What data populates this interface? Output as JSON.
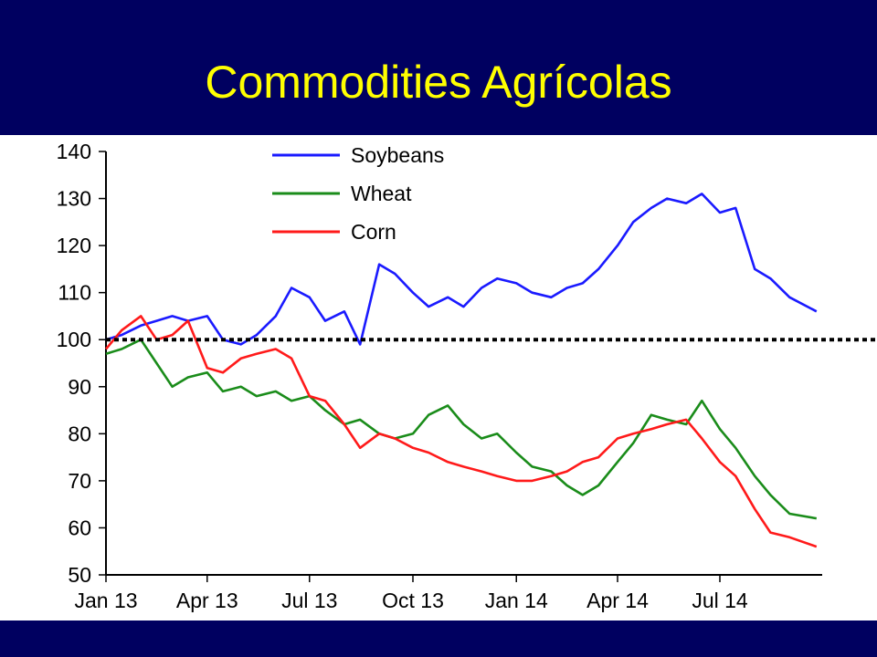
{
  "slide": {
    "title": "Commodities Agrícolas"
  },
  "chart_data": {
    "type": "line",
    "title": "",
    "xlabel": "",
    "ylabel": "",
    "ylim": [
      50,
      140
    ],
    "yticks": [
      50,
      60,
      70,
      80,
      90,
      100,
      110,
      120,
      130,
      140
    ],
    "x_ticks": [
      "Jan 13",
      "Apr 13",
      "Jul 13",
      "Oct 13",
      "Jan 14",
      "Apr 14",
      "Jul 14"
    ],
    "x_range": [
      "2013-01-01",
      "2014-09-30"
    ],
    "reference_line": {
      "y": 100,
      "style": "dotted",
      "color": "#000000"
    },
    "legend_position": "top-center",
    "grid": false,
    "series": [
      {
        "name": "Soybeans",
        "color": "#1a1aff",
        "x": [
          "2013-01-01",
          "2013-01-15",
          "2013-02-01",
          "2013-02-15",
          "2013-03-01",
          "2013-03-15",
          "2013-04-01",
          "2013-04-15",
          "2013-05-01",
          "2013-05-15",
          "2013-06-01",
          "2013-06-15",
          "2013-07-01",
          "2013-07-15",
          "2013-08-01",
          "2013-08-15",
          "2013-09-01",
          "2013-09-15",
          "2013-10-01",
          "2013-10-15",
          "2013-11-01",
          "2013-11-15",
          "2013-12-01",
          "2013-12-15",
          "2014-01-01",
          "2014-01-15",
          "2014-02-01",
          "2014-02-15",
          "2014-03-01",
          "2014-03-15",
          "2014-04-01",
          "2014-04-15",
          "2014-05-01",
          "2014-05-15",
          "2014-06-01",
          "2014-06-15",
          "2014-07-01",
          "2014-07-15",
          "2014-08-01",
          "2014-08-15",
          "2014-09-01",
          "2014-09-25"
        ],
        "values": [
          100,
          101,
          103,
          104,
          105,
          104,
          105,
          100,
          99,
          101,
          105,
          111,
          109,
          104,
          106,
          99,
          116,
          114,
          110,
          107,
          109,
          107,
          111,
          113,
          112,
          110,
          109,
          111,
          112,
          115,
          120,
          125,
          128,
          130,
          129,
          131,
          127,
          128,
          115,
          113,
          109,
          106
        ]
      },
      {
        "name": "Wheat",
        "color": "#1a8c1a",
        "x": [
          "2013-01-01",
          "2013-01-15",
          "2013-02-01",
          "2013-02-15",
          "2013-03-01",
          "2013-03-15",
          "2013-04-01",
          "2013-04-15",
          "2013-05-01",
          "2013-05-15",
          "2013-06-01",
          "2013-06-15",
          "2013-07-01",
          "2013-07-15",
          "2013-08-01",
          "2013-08-15",
          "2013-09-01",
          "2013-09-15",
          "2013-10-01",
          "2013-10-15",
          "2013-11-01",
          "2013-11-15",
          "2013-12-01",
          "2013-12-15",
          "2014-01-01",
          "2014-01-15",
          "2014-02-01",
          "2014-02-15",
          "2014-03-01",
          "2014-03-15",
          "2014-04-01",
          "2014-04-15",
          "2014-05-01",
          "2014-05-15",
          "2014-06-01",
          "2014-06-15",
          "2014-07-01",
          "2014-07-15",
          "2014-08-01",
          "2014-08-15",
          "2014-09-01",
          "2014-09-25"
        ],
        "values": [
          97,
          98,
          100,
          95,
          90,
          92,
          93,
          89,
          90,
          88,
          89,
          87,
          88,
          85,
          82,
          83,
          80,
          79,
          80,
          84,
          86,
          82,
          79,
          80,
          76,
          73,
          72,
          69,
          67,
          69,
          74,
          78,
          84,
          83,
          82,
          87,
          81,
          77,
          71,
          67,
          63,
          62
        ]
      },
      {
        "name": "Corn",
        "color": "#ff1a1a",
        "x": [
          "2013-01-01",
          "2013-01-15",
          "2013-02-01",
          "2013-02-15",
          "2013-03-01",
          "2013-03-15",
          "2013-04-01",
          "2013-04-15",
          "2013-05-01",
          "2013-05-15",
          "2013-06-01",
          "2013-06-15",
          "2013-07-01",
          "2013-07-15",
          "2013-08-01",
          "2013-08-15",
          "2013-09-01",
          "2013-09-15",
          "2013-10-01",
          "2013-10-15",
          "2013-11-01",
          "2013-11-15",
          "2013-12-01",
          "2013-12-15",
          "2014-01-01",
          "2014-01-15",
          "2014-02-01",
          "2014-02-15",
          "2014-03-01",
          "2014-03-15",
          "2014-04-01",
          "2014-04-15",
          "2014-05-01",
          "2014-05-15",
          "2014-06-01",
          "2014-06-15",
          "2014-07-01",
          "2014-07-15",
          "2014-08-01",
          "2014-08-15",
          "2014-09-01",
          "2014-09-25"
        ],
        "values": [
          98,
          102,
          105,
          100,
          101,
          104,
          94,
          93,
          96,
          97,
          98,
          96,
          88,
          87,
          82,
          77,
          80,
          79,
          77,
          76,
          74,
          73,
          72,
          71,
          70,
          70,
          71,
          72,
          74,
          75,
          79,
          80,
          81,
          82,
          83,
          79,
          74,
          71,
          64,
          59,
          58,
          56
        ]
      }
    ]
  }
}
